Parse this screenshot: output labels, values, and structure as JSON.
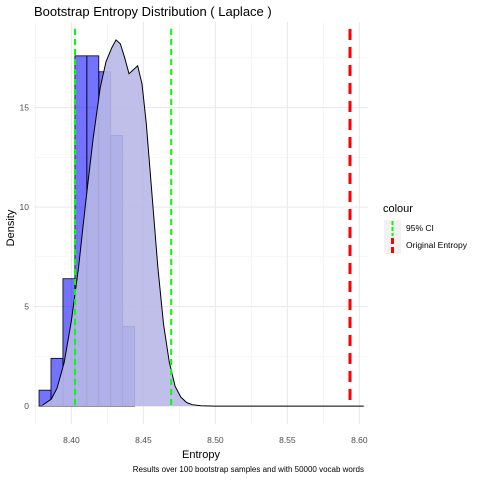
{
  "chart_data": {
    "type": "bar",
    "title": "Bootstrap Entropy Distribution ( Laplace )",
    "xlabel": "Entropy",
    "ylabel": "Density",
    "caption": "Results over 100 bootstrap samples and with 50000 vocab words",
    "xlim": [
      8.374,
      8.606
    ],
    "ylim": [
      -0.9,
      19.3
    ],
    "x_ticks": [
      8.4,
      8.45,
      8.5,
      8.55,
      8.6
    ],
    "x_tick_labels": [
      "8.40",
      "8.45",
      "8.50",
      "8.55",
      "8.60"
    ],
    "y_ticks": [
      0,
      5,
      10,
      15
    ],
    "y_tick_labels": [
      "0",
      "5",
      "10",
      "15"
    ],
    "grid": true,
    "histogram": {
      "bin_width": 0.0083,
      "bins": [
        {
          "left": 8.3775,
          "density": 0.8
        },
        {
          "left": 8.3858,
          "density": 2.4
        },
        {
          "left": 8.3941,
          "density": 6.4
        },
        {
          "left": 8.4024,
          "density": 17.6
        },
        {
          "left": 8.4107,
          "density": 17.6
        },
        {
          "left": 8.419,
          "density": 16.8
        },
        {
          "left": 8.4273,
          "density": 13.6
        },
        {
          "left": 8.4356,
          "density": 4.0
        }
      ],
      "fill": "#0000ff",
      "fill_opacity": 0.55,
      "stroke": "#000000"
    },
    "density_curve": {
      "x": [
        8.38,
        8.386,
        8.39,
        8.395,
        8.4,
        8.405,
        8.41,
        8.415,
        8.42,
        8.424,
        8.428,
        8.431,
        8.434,
        8.437,
        8.44,
        8.443,
        8.446,
        8.449,
        8.452,
        8.456,
        8.46,
        8.464,
        8.468,
        8.472,
        8.476,
        8.48,
        8.484,
        8.49,
        8.5,
        8.52,
        8.56,
        8.603
      ],
      "y": [
        0.05,
        0.35,
        0.9,
        2.2,
        4.3,
        7.0,
        10.3,
        13.4,
        16.0,
        17.3,
        18.0,
        18.4,
        18.2,
        17.5,
        16.7,
        16.9,
        17.1,
        16.2,
        14.2,
        10.6,
        7.0,
        4.1,
        2.2,
        1.0,
        0.45,
        0.18,
        0.07,
        0.02,
        0.0,
        0.0,
        0.0,
        0.0
      ],
      "fill": "#b8b8e8"
    },
    "vlines": [
      {
        "name": "95% CI",
        "x": 8.4025,
        "color": "#00ff00"
      },
      {
        "name": "95% CI",
        "x": 8.4693,
        "color": "#00ff00"
      },
      {
        "name": "Original Entropy",
        "x": 8.5935,
        "color": "#ff0000"
      }
    ],
    "legend": {
      "title": "colour",
      "placement": "right",
      "items": [
        {
          "label": "95% CI",
          "color": "#00ff00"
        },
        {
          "label": "Original Entropy",
          "color": "#ff0000"
        }
      ]
    }
  }
}
